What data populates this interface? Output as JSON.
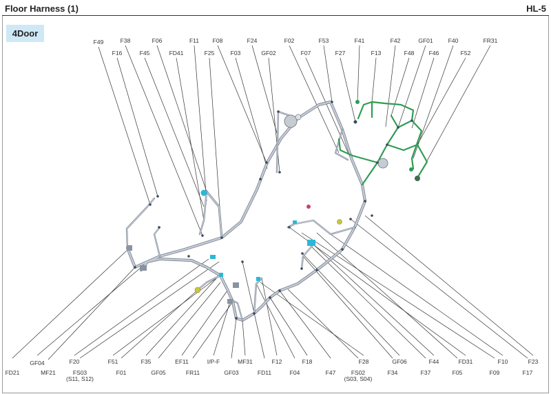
{
  "header": {
    "title": "Floor Harness (1)",
    "code": "HL-5"
  },
  "variant": "4Door",
  "top_labels": [
    "F49",
    "F16",
    "F38",
    "F45",
    "F06",
    "FD41",
    "F11",
    "F25",
    "F08",
    "F03",
    "F24",
    "GF02",
    "F02",
    "F07",
    "F53",
    "F27",
    "F41",
    "F13",
    "F42",
    "F48",
    "GF01",
    "F46",
    "F40",
    "F52",
    "FR31"
  ],
  "bottom_labels": [
    "FD21",
    "GF04",
    "MF21",
    "F20",
    "FS03",
    "(S11, S12)",
    "F51",
    "F01",
    "F35",
    "GF05",
    "EF11",
    "FR11",
    "I/P-F",
    "GF03",
    "MF31",
    "FD11",
    "F12",
    "F04",
    "F18",
    "F47",
    "F28",
    "FS02",
    "(S03, S04)",
    "F34",
    "GF06",
    "F37",
    "F44",
    "F05",
    "FD31",
    "F09",
    "F10",
    "F17",
    "F23"
  ],
  "colors": {
    "harness": "#b8c0cc",
    "harness_outline": "#6b7584",
    "sub_harness": "#2e9c52",
    "connector_blue": "#2bb8d8",
    "connector_dark": "#3a4a60",
    "connector_yellow": "#c8c840",
    "connector_magenta": "#c8407a",
    "leader": "#333333"
  }
}
